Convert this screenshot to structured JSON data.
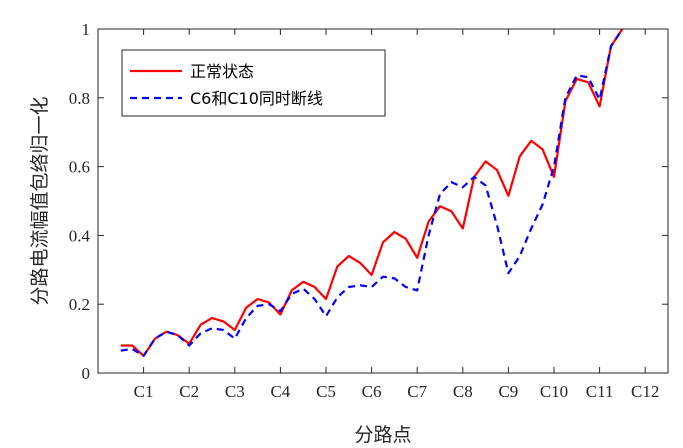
{
  "chart_data": {
    "type": "line",
    "title": "",
    "xlabel": "分路点",
    "ylabel": "分路电流幅值包络归一化",
    "categories": [
      "C1",
      "C2",
      "C3",
      "C4",
      "C5",
      "C6",
      "C7",
      "C8",
      "C9",
      "C10",
      "C11",
      "C12"
    ],
    "ylim": [
      0,
      1
    ],
    "yticks": [
      0,
      0.2,
      0.4,
      0.6,
      0.8,
      1
    ],
    "ytick_labels": [
      "0",
      "0.2",
      "0.4",
      "0.6",
      "0.8",
      "1"
    ],
    "grid": false,
    "legend_position": "top-left",
    "series": [
      {
        "name": "正常状态",
        "color": "#ff0000",
        "style": "solid",
        "x": [
          0.5,
          0.75,
          1.0,
          1.25,
          1.5,
          1.75,
          2.0,
          2.25,
          2.5,
          2.75,
          3.0,
          3.25,
          3.5,
          3.75,
          4.0,
          4.25,
          4.5,
          4.75,
          5.0,
          5.25,
          5.5,
          5.75,
          6.0,
          6.25,
          6.5,
          6.75,
          7.0,
          7.25,
          7.5,
          7.75,
          8.0,
          8.25,
          8.5,
          8.75,
          9.0,
          9.25,
          9.5,
          9.75,
          10.0,
          10.25,
          10.5,
          10.75,
          11.0,
          11.25,
          11.5
        ],
        "y": [
          0.08,
          0.08,
          0.05,
          0.1,
          0.12,
          0.11,
          0.085,
          0.14,
          0.16,
          0.15,
          0.125,
          0.19,
          0.215,
          0.205,
          0.17,
          0.24,
          0.265,
          0.25,
          0.215,
          0.31,
          0.34,
          0.32,
          0.285,
          0.38,
          0.41,
          0.39,
          0.335,
          0.44,
          0.485,
          0.47,
          0.42,
          0.57,
          0.615,
          0.59,
          0.515,
          0.63,
          0.675,
          0.65,
          0.57,
          0.79,
          0.855,
          0.845,
          0.775,
          0.95,
          1.0
        ]
      },
      {
        "name": "C6和C10同时断线",
        "color": "#0000ff",
        "style": "dashed",
        "x": [
          0.5,
          0.75,
          1.0,
          1.25,
          1.5,
          1.75,
          2.0,
          2.25,
          2.5,
          2.75,
          3.0,
          3.25,
          3.5,
          3.75,
          4.0,
          4.25,
          4.5,
          4.75,
          5.0,
          5.25,
          5.5,
          5.75,
          6.0,
          6.25,
          6.5,
          6.75,
          7.0,
          7.25,
          7.5,
          7.75,
          8.0,
          8.25,
          8.5,
          8.75,
          9.0,
          9.25,
          9.5,
          9.75,
          10.0,
          10.25,
          10.5,
          10.75,
          11.0,
          11.25,
          11.5
        ],
        "y": [
          0.065,
          0.07,
          0.05,
          0.1,
          0.12,
          0.11,
          0.08,
          0.115,
          0.13,
          0.125,
          0.1,
          0.16,
          0.195,
          0.2,
          0.18,
          0.23,
          0.245,
          0.215,
          0.165,
          0.22,
          0.25,
          0.255,
          0.25,
          0.28,
          0.275,
          0.25,
          0.24,
          0.4,
          0.52,
          0.555,
          0.54,
          0.57,
          0.545,
          0.43,
          0.29,
          0.34,
          0.42,
          0.49,
          0.6,
          0.8,
          0.865,
          0.86,
          0.795,
          0.95,
          1.0
        ]
      }
    ]
  }
}
